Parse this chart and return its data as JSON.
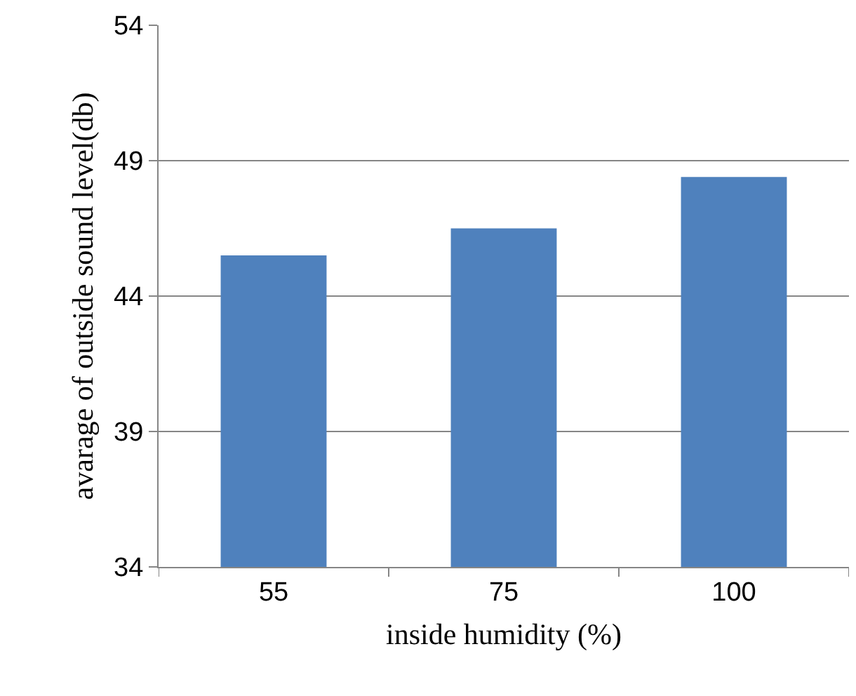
{
  "chart_data": {
    "type": "bar",
    "xlabel": "inside humidity (%)",
    "ylabel": "avarage of outside sound level(db)",
    "categories": [
      "55",
      "75",
      "100"
    ],
    "values": [
      45.5,
      46.5,
      48.4
    ],
    "color": "#4f81bd",
    "ylim": [
      34,
      54
    ],
    "yticks": [
      34,
      39,
      44,
      49,
      54
    ],
    "grid": "y"
  }
}
